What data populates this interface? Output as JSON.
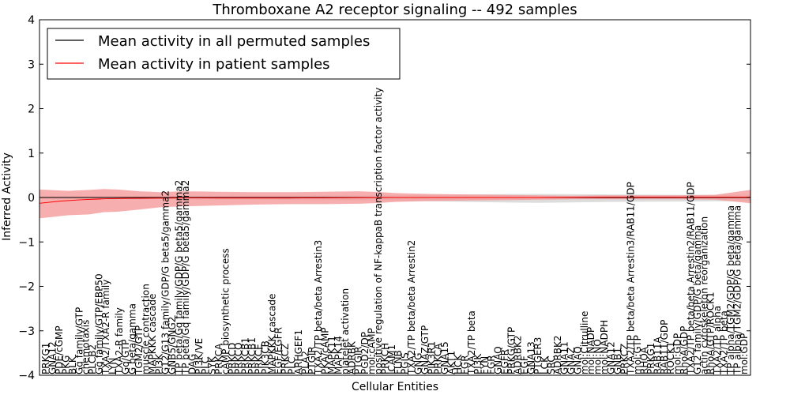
{
  "chart_data": {
    "type": "line",
    "title": "Thromboxane A2 receptor signaling -- 492 samples",
    "xlabel": "Cellular Entities",
    "ylabel": "Inferred Activity",
    "ylim": [
      -4,
      4
    ],
    "yticks": [
      "−4",
      "−3",
      "−2",
      "−1",
      "0",
      "1",
      "2",
      "3",
      "4"
    ],
    "legend": {
      "position": "top-left",
      "entries": [
        {
          "label": "Mean activity in all permuted samples",
          "color": "#000000"
        },
        {
          "label": "Mean activity in patient samples",
          "color": "#ff0000"
        }
      ]
    },
    "colors": {
      "permuted_band": "#d9d9d9",
      "patient_band": "#f49a9a",
      "permuted_line": "#000000",
      "patient_line": "#ff0000"
    },
    "categories": [
      "PRKG1",
      "GNA12",
      "PDE/cGMP",
      "PKG",
      "BLK",
      "Gq family/GTP",
      "chemotaxis",
      "PLCB2",
      "Gq family/GTP/EBP50",
      "TXA2/TXA2-R family",
      "LYN",
      "TXA2-R family",
      "Gq/GTP",
      "G beta/gamma",
      "TGM2/GTP",
      "muscle contraction",
      "MAPKKK cascade",
      "PI3K",
      "G12/G13 family/GDP/G beta5/gamma2",
      "GNB5/GNG2",
      "TP beta/Gq family/GDP/G beta5/gamma2",
      "TP beta/Gq family/GDP/G beta5/gamma2",
      "DAG",
      "PI3K/VE",
      "PLC",
      "SYK",
      "PRKCA",
      "cAMP biosynthetic process",
      "PRKCD",
      "PRKCQ",
      "PRKCB1",
      "PRKCB1",
      "PRKCE",
      "PIK3CB",
      "MAPKKK cascade",
      "EGF/EGFR",
      "PRKCZ",
      "PLC",
      "ARHGEF1",
      "PLA2",
      "PTGIR",
      "TXA2/TP beta/beta Arrestin3",
      "PKA/cAMP",
      "MAPK11",
      "MAPK14",
      "platelet activation",
      "ADRBK",
      "PTGIR",
      "PGD2/DP",
      "mol:cAMP",
      "positive regulation of NF-kappaB transcription factor activity",
      "PRKCH",
      "ICAM1",
      "FLNB",
      "PGIS",
      "TXA2/TP beta/beta Arrestin2",
      "GNG",
      "GNAZ/GTP",
      "PIK3R1",
      "PRKCA",
      "GNA15",
      "AKT1",
      "HCK",
      "FGR",
      "TXA2/TP beta",
      "PI3K",
      "FYN",
      "FGR",
      "GNAQ",
      "EGFR",
      "PRKG/GTP",
      "ADRBK2",
      "EGF",
      "GNA13",
      "PTGER3",
      "LCK",
      "SRC",
      "ADRBK2",
      "GNA11",
      "GNAZ",
      "GNAQ",
      "mol:Citrulline",
      "mol:NADP",
      "mol:NO",
      "mol:NADPH",
      "GNA12",
      "GNB1",
      "PRKCZ",
      "TXA2/TP beta/beta Arrestin3/RAB11/GDP",
      "mol:GTP",
      "RHOA",
      "PRKG1",
      "RAB11A",
      "RAB11/GDP",
      "ROCK1",
      "mol:GDP",
      "RhoA/GDP",
      "TXA2/TP beta/beta Arrestin2/RAB11/GDP",
      "G12 family/GDP/G beta/gamma",
      "actin cytoskeleton reorganization",
      "RhoA/GTP/ROCK1",
      "TXA2/TP alpha",
      "TXA2/TP beta",
      "TP alpha/TGM2/GDP/G beta/gamma",
      "TP alpha/TGM2/GDP/G beta/gamma",
      "mol:GDP"
    ],
    "x": [
      0,
      1
    ],
    "series": [
      {
        "name": "Mean activity in patient samples",
        "points": [
          [
            0.0,
            -0.13
          ],
          [
            0.03,
            -0.08
          ],
          [
            0.06,
            -0.05
          ],
          [
            0.09,
            -0.03
          ],
          [
            0.12,
            -0.02
          ],
          [
            0.16,
            -0.015
          ],
          [
            0.2,
            -0.01
          ],
          [
            0.25,
            -0.01
          ],
          [
            0.3,
            -0.01
          ],
          [
            0.35,
            -0.01
          ],
          [
            0.4,
            -0.008
          ],
          [
            0.45,
            -0.005
          ],
          [
            0.5,
            0.0
          ],
          [
            0.55,
            0.0
          ],
          [
            0.6,
            0.0
          ],
          [
            0.65,
            0.0
          ],
          [
            0.7,
            0.0
          ],
          [
            0.75,
            0.005
          ],
          [
            0.8,
            0.01
          ],
          [
            0.85,
            0.01
          ],
          [
            0.9,
            0.01
          ],
          [
            0.95,
            0.01
          ],
          [
            1.0,
            0.01
          ]
        ],
        "band_upper": [
          [
            0.0,
            0.18
          ],
          [
            0.04,
            0.15
          ],
          [
            0.07,
            0.17
          ],
          [
            0.09,
            0.19
          ],
          [
            0.11,
            0.18
          ],
          [
            0.14,
            0.14
          ],
          [
            0.17,
            0.12
          ],
          [
            0.2,
            0.14
          ],
          [
            0.25,
            0.13
          ],
          [
            0.3,
            0.12
          ],
          [
            0.35,
            0.12
          ],
          [
            0.4,
            0.13
          ],
          [
            0.45,
            0.14
          ],
          [
            0.48,
            0.12
          ],
          [
            0.5,
            0.1
          ],
          [
            0.55,
            0.08
          ],
          [
            0.6,
            0.07
          ],
          [
            0.65,
            0.06
          ],
          [
            0.7,
            0.05
          ],
          [
            0.75,
            0.04
          ],
          [
            0.8,
            0.05
          ],
          [
            0.85,
            0.05
          ],
          [
            0.9,
            0.05
          ],
          [
            0.95,
            0.06
          ],
          [
            1.0,
            0.17
          ]
        ],
        "band_lower": [
          [
            0.0,
            -0.47
          ],
          [
            0.04,
            -0.4
          ],
          [
            0.07,
            -0.38
          ],
          [
            0.09,
            -0.33
          ],
          [
            0.11,
            -0.32
          ],
          [
            0.14,
            -0.27
          ],
          [
            0.17,
            -0.22
          ],
          [
            0.2,
            -0.2
          ],
          [
            0.25,
            -0.18
          ],
          [
            0.3,
            -0.16
          ],
          [
            0.35,
            -0.15
          ],
          [
            0.4,
            -0.15
          ],
          [
            0.45,
            -0.14
          ],
          [
            0.48,
            -0.12
          ],
          [
            0.5,
            -0.1
          ],
          [
            0.55,
            -0.08
          ],
          [
            0.6,
            -0.07
          ],
          [
            0.65,
            -0.06
          ],
          [
            0.7,
            -0.05
          ],
          [
            0.75,
            -0.04
          ],
          [
            0.8,
            -0.04
          ],
          [
            0.85,
            -0.04
          ],
          [
            0.9,
            -0.04
          ],
          [
            0.95,
            -0.05
          ],
          [
            1.0,
            -0.13
          ]
        ]
      },
      {
        "name": "Mean activity in all permuted samples",
        "points": [
          [
            0.0,
            0.0
          ],
          [
            1.0,
            0.0
          ]
        ],
        "band_upper": [
          [
            0.0,
            0.03
          ],
          [
            0.3,
            0.04
          ],
          [
            0.5,
            0.05
          ],
          [
            0.6,
            0.07
          ],
          [
            0.7,
            0.08
          ],
          [
            0.8,
            0.07
          ],
          [
            0.9,
            0.06
          ],
          [
            1.0,
            0.06
          ]
        ],
        "band_lower": [
          [
            0.0,
            -0.03
          ],
          [
            0.3,
            -0.05
          ],
          [
            0.5,
            -0.07
          ],
          [
            0.6,
            -0.1
          ],
          [
            0.7,
            -0.12
          ],
          [
            0.8,
            -0.1
          ],
          [
            0.9,
            -0.09
          ],
          [
            1.0,
            -0.08
          ]
        ]
      }
    ]
  }
}
